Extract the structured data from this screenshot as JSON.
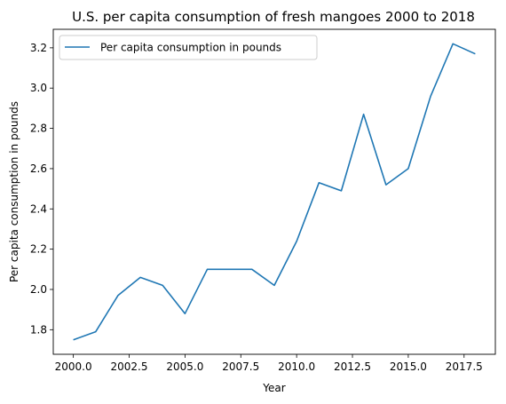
{
  "chart_data": {
    "type": "line",
    "title": "U.S. per capita consumption of fresh mangoes 2000 to 2018",
    "xlabel": "Year",
    "ylabel": "Per capita consumption in pounds",
    "xlim": [
      1999.1,
      2018.9
    ],
    "ylim": [
      1.678,
      3.292
    ],
    "x_ticks": [
      2000.0,
      2002.5,
      2005.0,
      2007.5,
      2010.0,
      2012.5,
      2015.0,
      2017.5
    ],
    "x_tick_labels": [
      "2000.0",
      "2002.5",
      "2005.0",
      "2007.5",
      "2010.0",
      "2012.5",
      "2015.0",
      "2017.5"
    ],
    "y_ticks": [
      1.8,
      2.0,
      2.2,
      2.4,
      2.6,
      2.8,
      3.0,
      3.2
    ],
    "y_tick_labels": [
      "1.8",
      "2.0",
      "2.2",
      "2.4",
      "2.6",
      "2.8",
      "3.0",
      "3.2"
    ],
    "grid": false,
    "legend_position": "top-left",
    "series": [
      {
        "name": "Per capita consumption in pounds",
        "color": "#1f77b4",
        "x": [
          2000,
          2001,
          2002,
          2003,
          2004,
          2005,
          2006,
          2007,
          2008,
          2009,
          2010,
          2011,
          2012,
          2013,
          2014,
          2015,
          2016,
          2017,
          2018
        ],
        "values": [
          1.75,
          1.79,
          1.97,
          2.06,
          2.02,
          1.88,
          2.1,
          2.1,
          2.1,
          2.02,
          2.24,
          2.53,
          2.49,
          2.87,
          2.52,
          2.6,
          2.96,
          3.22,
          3.17
        ]
      }
    ]
  }
}
